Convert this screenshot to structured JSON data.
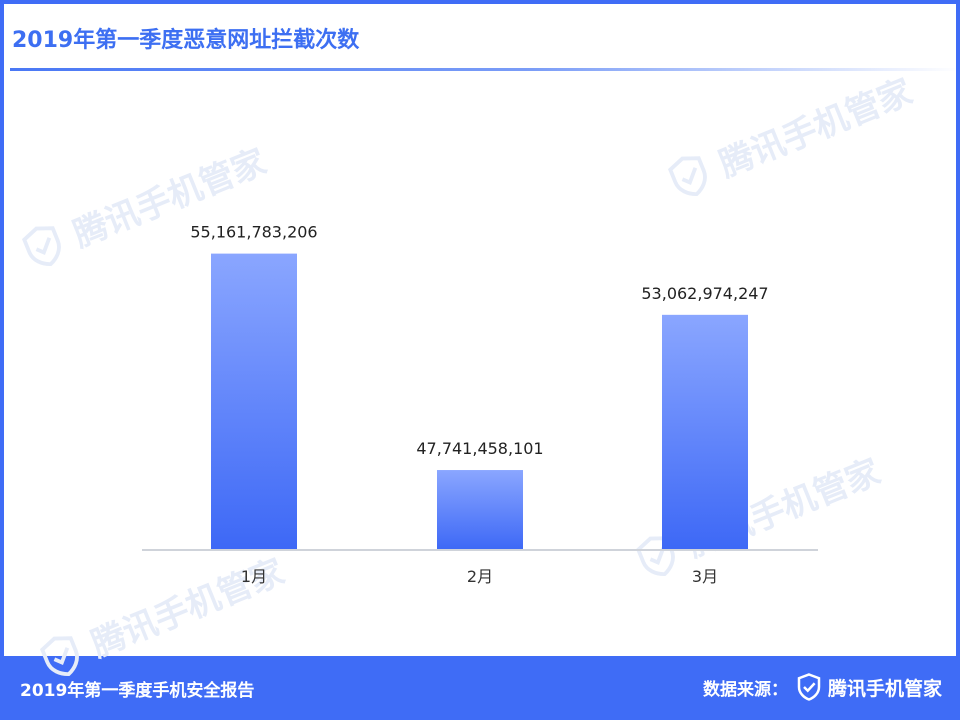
{
  "header": {
    "title": "2019年第一季度恶意网址拦截次数"
  },
  "watermark": {
    "text": "腾讯手机管家",
    "icon": "shield-check-icon"
  },
  "footer": {
    "report_title": "2019年第一季度手机安全报告",
    "source_label": "数据来源：",
    "brand_name": "腾讯手机管家",
    "brand_icon": "shield-check-icon"
  },
  "colors": {
    "background_frame": "#3f6cf6",
    "title": "#3d6ff2",
    "bar_top": "#8aa6ff",
    "bar_bottom": "#3d68f6"
  },
  "chart_data": {
    "type": "bar",
    "title": "2019年第一季度恶意网址拦截次数",
    "categories": [
      "1月",
      "2月",
      "3月"
    ],
    "values": [
      55161783206,
      47741458101,
      53062974247
    ],
    "value_labels": [
      "55,161,783,206",
      "47,741,458,101",
      "53,062,974,247"
    ],
    "xlabel": "",
    "ylabel": "",
    "ylim": [
      45000000000,
      57000000000
    ],
    "grid": false,
    "legend": "none"
  }
}
